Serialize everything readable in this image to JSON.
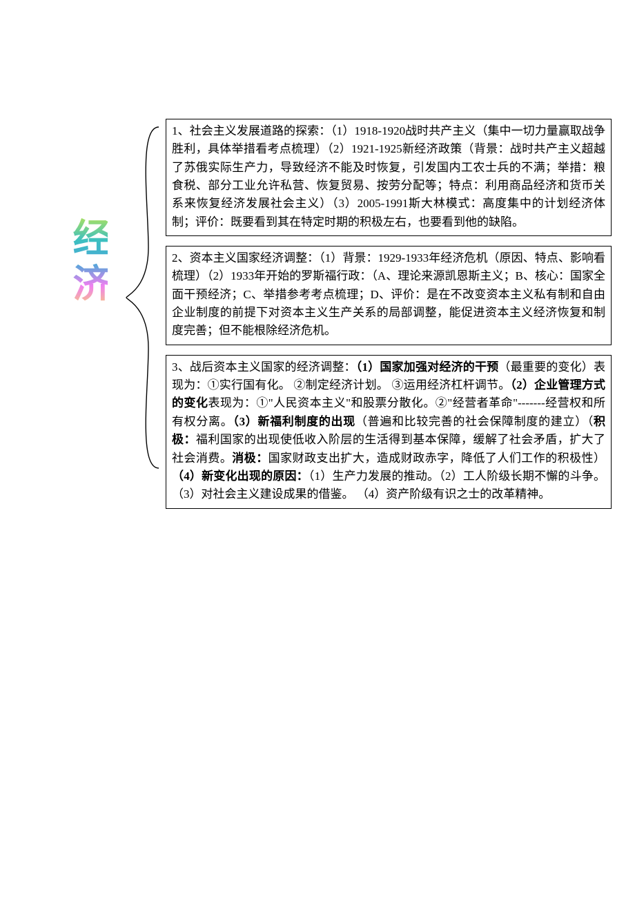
{
  "label": {
    "text": "经济",
    "font_family": "KaiTi",
    "font_size_pt": 42,
    "gradient_colors": [
      "#a8e063",
      "#3cc0c0",
      "#4aa8d8",
      "#f080f0",
      "#f8d070"
    ]
  },
  "brace": {
    "stroke": "#000000",
    "stroke_width": 1.2
  },
  "boxes": [
    {
      "border_color": "#000000",
      "font_size_pt": 13,
      "line_height": 1.55,
      "text_color": "#000000",
      "runs": [
        {
          "t": "1、社会主义发展道路的探索：（1）1918-1920战时共产主义（集中一切力量赢取战争胜利，具体举措看考点梳理）（2）1921-1925新经济政策（背景：战时共产主义超越了苏俄实际生产力，导致经济不能及时恢复，引发国内工农士兵的不满；举措：粮食税、部分工业允许私营、恢复贸易、按劳分配等；特点：利用商品经济和货币关系来恢复经济发展社会主义）（3）2005-1991斯大林模式：高度集中的计划经济体制；评价：既要看到其在特定时期的积极左右，也要看到他的缺陷。",
          "bold": false
        }
      ]
    },
    {
      "border_color": "#000000",
      "font_size_pt": 13,
      "line_height": 1.55,
      "text_color": "#000000",
      "runs": [
        {
          "t": "2、资本主义国家经济调整：（1）背景：1929-1933年经济危机（原因、特点、影响看梳理）（2）1933年开始的罗斯福行政：（A、理论来源凯恩斯主义；B、核心：国家全面干预经济；C、举措参考考点梳理；D、评价：是在不改变资本主义私有制和自由企业制度的前提下对资本主义生产关系的局部调整，能促进资本主义经济恢复和制度完善；但不能根除经济危机。",
          "bold": false
        }
      ]
    },
    {
      "border_color": "#000000",
      "font_size_pt": 13,
      "line_height": 1.55,
      "text_color": "#000000",
      "runs": [
        {
          "t": "3、战后资本主义国家的经济调整：",
          "bold": false
        },
        {
          "t": "（1）国家加强对经济的干预",
          "bold": true
        },
        {
          "t": "（最重要的变化）表现为：①实行国有化。 ②制定经济计划。 ③运用经济杠杆调节。",
          "bold": false
        },
        {
          "t": "（2）企业管理方式的变化",
          "bold": true
        },
        {
          "t": "表现为：①\"人民资本主义\"和股票分散化。②\"经营者革命\"-------经营权和所有权分离。",
          "bold": false
        },
        {
          "t": "（3）新福利制度的出现",
          "bold": true
        },
        {
          "t": "（普遍和比较完善的社会保障制度的建立）（",
          "bold": false
        },
        {
          "t": "积极：",
          "bold": true
        },
        {
          "t": "福利国家的出现使低收入阶层的生活得到基本保障，缓解了社会矛盾，扩大了社会消费。",
          "bold": false
        },
        {
          "t": "消极：",
          "bold": true
        },
        {
          "t": "国家财政支出扩大，造成财政赤字，降低了人们工作的积极性）",
          "bold": false
        },
        {
          "t": "（4）新变化出现的原因：",
          "bold": true
        },
        {
          "t": "（1）生产力发展的推动。（2）工人阶级长期不懈的斗争。（3）对社会主义建设成果的借鉴。 （4）资产阶级有识之士的改革精神。",
          "bold": false
        }
      ]
    }
  ]
}
